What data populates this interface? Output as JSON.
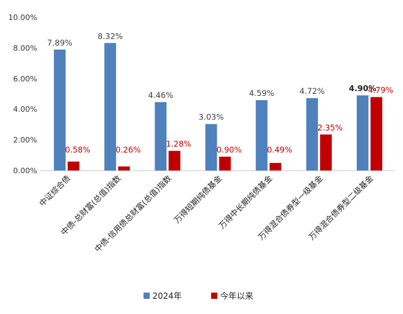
{
  "chart_data": {
    "type": "bar",
    "categories": [
      "中证综合债",
      "中债-总财富(总值)指数",
      "中债-信用债总财富(总值)指数",
      "万得短期纯债基金",
      "万得中长期纯债基金",
      "万得混合债券型一级基金",
      "万得混合债券型二级基金"
    ],
    "series": [
      {
        "name": "2024年",
        "values": [
          7.89,
          8.32,
          4.46,
          3.03,
          4.59,
          4.72,
          4.9
        ],
        "labels": [
          "7.89%",
          "8.32%",
          "4.46%",
          "3.03%",
          "4.59%",
          "4.72%",
          "4.90%"
        ],
        "color": "#4F81BD",
        "label_color": "#404040"
      },
      {
        "name": "今年以来",
        "values": [
          0.58,
          0.26,
          1.28,
          0.9,
          0.49,
          2.35,
          4.79
        ],
        "labels": [
          "0.58%",
          "0.26%",
          "1.28%",
          "0.90%",
          "0.49%",
          "2.35%",
          "4.79%"
        ],
        "color": "#C00000",
        "label_color": "#C00000"
      }
    ],
    "yticks": [
      "0.00%",
      "2.00%",
      "4.00%",
      "6.00%",
      "8.00%",
      "10.00%"
    ],
    "ylim": [
      0,
      10
    ],
    "grid": false,
    "legend": "bottom"
  }
}
